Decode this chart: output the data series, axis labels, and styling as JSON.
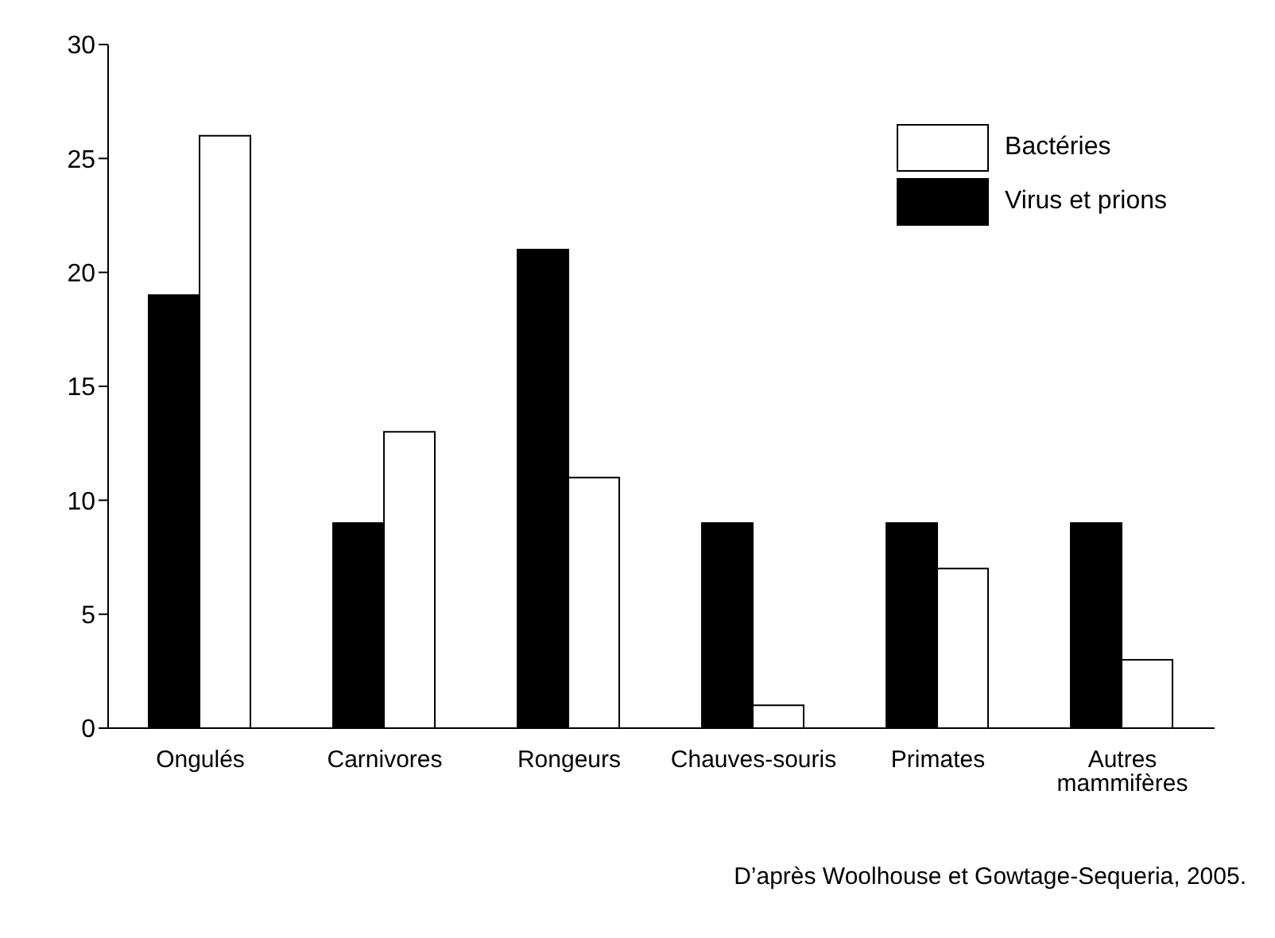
{
  "chart_data": {
    "type": "bar",
    "categories": [
      "Ongulés",
      "Carnivores",
      "Rongeurs",
      "Chauves-souris",
      "Primates",
      "Autres mammifères"
    ],
    "series": [
      {
        "name": "Virus et prions",
        "color": "#000000",
        "values": [
          19,
          9,
          21,
          9,
          9,
          9
        ]
      },
      {
        "name": "Bactéries",
        "color": "#ffffff",
        "values": [
          26,
          13,
          11,
          1,
          7,
          3
        ]
      }
    ],
    "ylim": [
      0,
      30
    ],
    "yticks": [
      0,
      5,
      10,
      15,
      20,
      25,
      30
    ],
    "grid": false,
    "legend": "top right",
    "annotations": [
      "D’après Woolhouse et Gowtage-Sequeria, 2005."
    ]
  }
}
